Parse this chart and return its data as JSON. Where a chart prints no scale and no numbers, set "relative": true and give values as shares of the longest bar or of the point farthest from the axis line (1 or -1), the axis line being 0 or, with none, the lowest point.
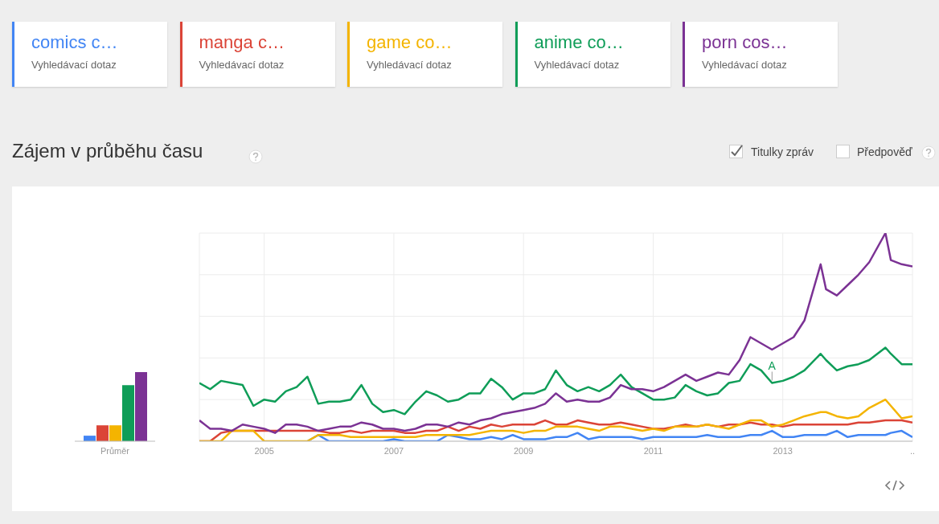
{
  "chart_data": [
    {
      "type": "bar",
      "relative": true,
      "categories": [
        "Průměr"
      ],
      "grid": false,
      "series": [
        {
          "color": "#4285f4",
          "values": [
            0.08
          ]
        },
        {
          "color": "#db4437",
          "values": [
            0.23
          ]
        },
        {
          "color": "#f4b400",
          "values": [
            0.23
          ]
        },
        {
          "color": "#0f9d58",
          "values": [
            0.81
          ]
        },
        {
          "color": "#7b3294",
          "values": [
            1
          ]
        }
      ]
    },
    {
      "type": "line",
      "relative": true,
      "title": "Zájem v průběhu času",
      "legend": "top",
      "grid": true,
      "xlim": [
        "2004-01",
        "2015-01"
      ],
      "xticks": [
        "2005",
        "2007",
        "2009",
        "2011",
        "2013",
        {
          "value": "2015",
          "label": ".."
        }
      ],
      "x": [
        "2004-01",
        "2004-03",
        "2004-05",
        "2004-07",
        "2004-09",
        "2004-11",
        "2005-01",
        "2005-03",
        "2005-05",
        "2005-07",
        "2005-09",
        "2005-11",
        "2006-01",
        "2006-03",
        "2006-05",
        "2006-07",
        "2006-09",
        "2006-11",
        "2007-01",
        "2007-03",
        "2007-05",
        "2007-07",
        "2007-09",
        "2007-11",
        "2008-01",
        "2008-03",
        "2008-05",
        "2008-07",
        "2008-09",
        "2008-11",
        "2009-01",
        "2009-03",
        "2009-05",
        "2009-07",
        "2009-09",
        "2009-11",
        "2010-01",
        "2010-03",
        "2010-05",
        "2010-07",
        "2010-09",
        "2010-11",
        "2011-01",
        "2011-03",
        "2011-05",
        "2011-07",
        "2011-09",
        "2011-11",
        "2012-01",
        "2012-03",
        "2012-05",
        "2012-07",
        "2012-09",
        "2012-11",
        "2013-01",
        "2013-03",
        "2013-05",
        "2013-08",
        "2013-09",
        "2013-11",
        "2014-01",
        "2014-03",
        "2014-05",
        "2014-08",
        "2014-09",
        "2014-11",
        "2015-01"
      ],
      "series": [
        {
          "name": "comics c…",
          "color": "#4285f4",
          "values": [
            null,
            null,
            null,
            null,
            null,
            null,
            null,
            null,
            null,
            null,
            0,
            0.03,
            0,
            0,
            0,
            0,
            0,
            0,
            0.01,
            0,
            0,
            0,
            0,
            0.03,
            0.02,
            0.01,
            0.01,
            0.02,
            0.01,
            0.03,
            0.01,
            0.01,
            0.01,
            0.02,
            0.02,
            0.04,
            0.01,
            0.02,
            0.02,
            0.02,
            0.02,
            0.01,
            0.02,
            0.02,
            0.02,
            0.02,
            0.02,
            0.03,
            0.02,
            0.02,
            0.02,
            0.03,
            0.03,
            0.05,
            0.02,
            0.02,
            0.03,
            0.03,
            0.03,
            0.05,
            0.02,
            0.03,
            0.03,
            0.03,
            0.04,
            0.05,
            0.02
          ]
        },
        {
          "name": "manga c…",
          "color": "#db4437",
          "values": [
            0,
            0,
            0.04,
            0.05,
            0.05,
            0.05,
            0.05,
            0.05,
            0.05,
            0.05,
            0.05,
            0.05,
            0.04,
            0.04,
            0.05,
            0.04,
            0.05,
            0.05,
            0.05,
            0.04,
            0.04,
            0.05,
            0.05,
            0.07,
            0.05,
            0.07,
            0.06,
            0.08,
            0.07,
            0.08,
            0.08,
            0.08,
            0.1,
            0.08,
            0.08,
            0.1,
            0.09,
            0.08,
            0.08,
            0.09,
            0.08,
            0.07,
            0.06,
            0.06,
            0.07,
            0.08,
            0.07,
            0.08,
            0.07,
            0.08,
            0.08,
            0.09,
            0.08,
            0.08,
            0.07,
            0.08,
            0.08,
            0.08,
            0.08,
            0.08,
            0.08,
            0.09,
            0.09,
            0.1,
            0.1,
            0.1,
            0.09
          ]
        },
        {
          "name": "game co…",
          "color": "#f4b400",
          "values": [
            0,
            0,
            0,
            0.05,
            0.05,
            0.05,
            0,
            0,
            0,
            0,
            0,
            0.03,
            0.03,
            0.03,
            0.02,
            0.02,
            0.02,
            0.02,
            0.02,
            0.02,
            0.02,
            0.03,
            0.03,
            0.03,
            0.03,
            0.03,
            0.04,
            0.05,
            0.05,
            0.05,
            0.04,
            0.05,
            0.05,
            0.07,
            0.07,
            0.07,
            0.06,
            0.05,
            0.07,
            0.07,
            0.06,
            0.05,
            0.06,
            0.05,
            0.07,
            0.07,
            0.07,
            0.08,
            0.07,
            0.06,
            0.08,
            0.1,
            0.1,
            0.07,
            0.08,
            0.1,
            0.12,
            0.14,
            0.14,
            0.12,
            0.11,
            0.12,
            0.16,
            0.2,
            0.17,
            0.11,
            0.12
          ]
        },
        {
          "name": "anime co…",
          "color": "#0f9d58",
          "values": [
            0.28,
            0.25,
            0.29,
            0.28,
            0.27,
            0.17,
            0.2,
            0.19,
            0.24,
            0.26,
            0.31,
            0.18,
            0.19,
            0.19,
            0.2,
            0.27,
            0.18,
            0.14,
            0.15,
            0.13,
            0.19,
            0.24,
            0.22,
            0.19,
            0.2,
            0.23,
            0.23,
            0.3,
            0.26,
            0.2,
            0.23,
            0.23,
            0.25,
            0.34,
            0.27,
            0.24,
            0.26,
            0.24,
            0.27,
            0.32,
            0.26,
            0.23,
            0.2,
            0.2,
            0.21,
            0.27,
            0.24,
            0.22,
            0.23,
            0.28,
            0.29,
            0.37,
            0.34,
            0.28,
            0.29,
            0.31,
            0.34,
            0.42,
            0.39,
            0.34,
            0.36,
            0.37,
            0.39,
            0.45,
            0.42,
            0.37,
            0.37
          ]
        },
        {
          "name": "porn cos…",
          "color": "#7b3294",
          "values": [
            0.1,
            0.06,
            0.06,
            0.05,
            0.08,
            0.07,
            0.06,
            0.04,
            0.08,
            0.08,
            0.07,
            0.05,
            0.06,
            0.07,
            0.07,
            0.09,
            0.08,
            0.06,
            0.06,
            0.05,
            0.06,
            0.08,
            0.08,
            0.07,
            0.09,
            0.08,
            0.1,
            0.11,
            0.13,
            0.14,
            0.15,
            0.16,
            0.18,
            0.23,
            0.19,
            0.2,
            0.19,
            0.19,
            0.21,
            0.27,
            0.25,
            0.25,
            0.24,
            0.26,
            0.29,
            0.32,
            0.29,
            0.31,
            0.33,
            0.32,
            0.39,
            0.5,
            0.47,
            0.44,
            0.47,
            0.5,
            0.58,
            0.85,
            0.73,
            0.7,
            0.75,
            0.8,
            0.86,
            1,
            0.87,
            0.85,
            0.84
          ]
        }
      ],
      "annotations": [
        "Vyhledávací dotaz",
        "Vyhledávací dotaz",
        "Vyhledávací dotaz",
        "Vyhledávací dotaz",
        "Vyhledávací dotaz",
        "Titulky zpráv",
        "Předpověď",
        {
          "text": "A",
          "x": "2012-11",
          "y": 0.28
        }
      ]
    }
  ]
}
